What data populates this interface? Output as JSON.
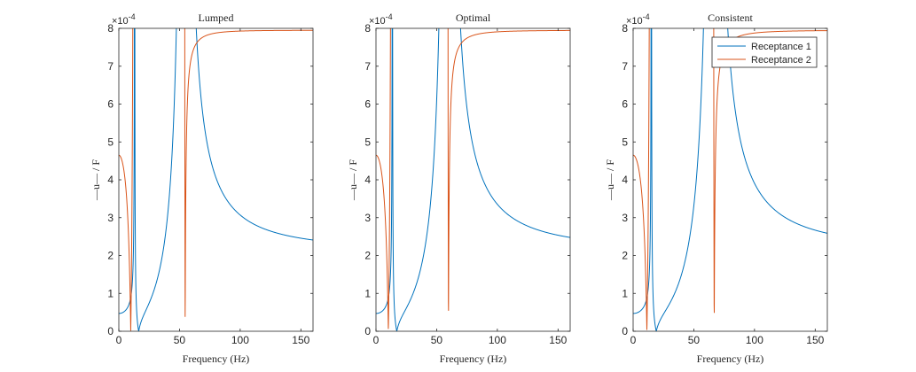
{
  "figure": {
    "colors": {
      "receptance_1": "#0072BD",
      "receptance_2": "#D95319",
      "axes": "#262626",
      "background": "#ffffff"
    }
  },
  "chart_data": [
    {
      "type": "line",
      "title": "Lumped",
      "xlabel": "Frequency (Hz)",
      "ylabel": "—u— / F",
      "xlim": [
        0,
        160
      ],
      "ylim": [
        0,
        8
      ],
      "y_exponent_label": "×10^-4",
      "xticks": [
        0,
        50,
        100,
        150
      ],
      "yticks": [
        0,
        1,
        2,
        3,
        4,
        5,
        6,
        7,
        8
      ],
      "grid": false,
      "legend": null,
      "model": {
        "series_1": {
          "g0": 0.47,
          "poles": [
            [
              13,
              0.26
            ],
            [
              54,
              2.32
            ]
          ],
          "zeros": [
            17
          ]
        },
        "series_2": {
          "g0": 4.65,
          "poles": [
            [
              13,
              -3.5
            ],
            [
              54,
              0.2
            ]
          ],
          "zeros": [
            53.5
          ]
        }
      },
      "series": [
        {
          "name": "Receptance 1",
          "x": [
            0,
            5,
            10,
            13,
            15,
            17,
            20,
            30,
            40,
            50,
            54,
            58,
            70,
            100,
            130,
            160
          ],
          "values": [
            0.47,
            0.55,
            1.2,
            8.0,
            1.2,
            0.0,
            0.06,
            0.2,
            0.56,
            2.5,
            8.0,
            2.3,
            0.62,
            0.18,
            0.09,
            0.05
          ]
        },
        {
          "name": "Receptance 2",
          "x": [
            0,
            5,
            10,
            13,
            15,
            20,
            30,
            40,
            50,
            53.5,
            54,
            60,
            100,
            160
          ],
          "values": [
            4.65,
            5.3,
            8.0,
            8.0,
            7.9,
            2.4,
            1.1,
            0.6,
            0.3,
            0.0,
            8.0,
            0.2,
            0.05,
            0.02
          ]
        }
      ]
    },
    {
      "type": "line",
      "title": "Optimal",
      "xlabel": "Frequency (Hz)",
      "ylabel": "—u— / F",
      "xlim": [
        0,
        160
      ],
      "ylim": [
        0,
        8
      ],
      "y_exponent_label": "×10^-4",
      "xticks": [
        0,
        50,
        100,
        150
      ],
      "yticks": [
        0,
        1,
        2,
        3,
        4,
        5,
        6,
        7,
        8
      ],
      "grid": false,
      "legend": null,
      "model": {
        "series_1": {
          "g0": 0.47,
          "poles": [
            [
              13.5,
              0.26
            ],
            [
              59,
              2.32
            ]
          ],
          "zeros": [
            18
          ]
        },
        "series_2": {
          "g0": 4.65,
          "poles": [
            [
              13.5,
              -3.5
            ],
            [
              59,
              0.2
            ]
          ],
          "zeros": [
            58.5
          ]
        }
      },
      "series": [
        {
          "name": "Receptance 1",
          "x": [
            0,
            5,
            10,
            13.5,
            15,
            18,
            20,
            30,
            40,
            50,
            59,
            65,
            100,
            130,
            160
          ],
          "values": [
            0.47,
            0.54,
            1.0,
            8.0,
            1.7,
            0.0,
            0.04,
            0.17,
            0.4,
            0.9,
            8.0,
            1.7,
            0.22,
            0.1,
            0.06
          ]
        },
        {
          "name": "Receptance 2",
          "x": [
            0,
            5,
            10,
            13.5,
            15,
            20,
            30,
            40,
            50,
            58.5,
            59,
            65,
            100,
            160
          ],
          "values": [
            4.65,
            5.3,
            8.0,
            8.0,
            8.0,
            2.6,
            1.2,
            0.7,
            0.4,
            0.0,
            8.0,
            0.18,
            0.05,
            0.02
          ]
        }
      ]
    },
    {
      "type": "line",
      "title": "Consistent",
      "xlabel": "Frequency (Hz)",
      "ylabel": "—u— / F",
      "xlim": [
        0,
        160
      ],
      "ylim": [
        0,
        8
      ],
      "y_exponent_label": "×10^-4",
      "xticks": [
        0,
        50,
        100,
        150
      ],
      "yticks": [
        0,
        1,
        2,
        3,
        4,
        5,
        6,
        7,
        8
      ],
      "grid": false,
      "legend": {
        "position": "top-right",
        "entries": [
          "Receptance 1",
          "Receptance 2"
        ]
      },
      "model": {
        "series_1": {
          "g0": 0.47,
          "poles": [
            [
              15,
              0.26
            ],
            [
              66,
              2.32
            ]
          ],
          "zeros": [
            20
          ]
        },
        "series_2": {
          "g0": 4.65,
          "poles": [
            [
              15,
              -3.5
            ],
            [
              66,
              0.2
            ]
          ],
          "zeros": [
            65.5
          ]
        }
      },
      "series": [
        {
          "name": "Receptance 1",
          "x": [
            0,
            5,
            10,
            15,
            17,
            20,
            30,
            40,
            50,
            60,
            66,
            72,
            100,
            130,
            160
          ],
          "values": [
            0.47,
            0.53,
            0.85,
            8.0,
            1.9,
            0.0,
            0.1,
            0.3,
            0.6,
            1.6,
            8.0,
            1.6,
            0.3,
            0.13,
            0.07
          ]
        },
        {
          "name": "Receptance 2",
          "x": [
            0,
            5,
            10,
            15,
            17,
            20,
            30,
            40,
            50,
            60,
            65.5,
            66,
            72,
            100,
            160
          ],
          "values": [
            4.65,
            5.2,
            6.6,
            8.0,
            8.0,
            3.0,
            1.3,
            0.8,
            0.55,
            0.3,
            0.0,
            8.0,
            0.15,
            0.05,
            0.02
          ]
        }
      ]
    }
  ]
}
